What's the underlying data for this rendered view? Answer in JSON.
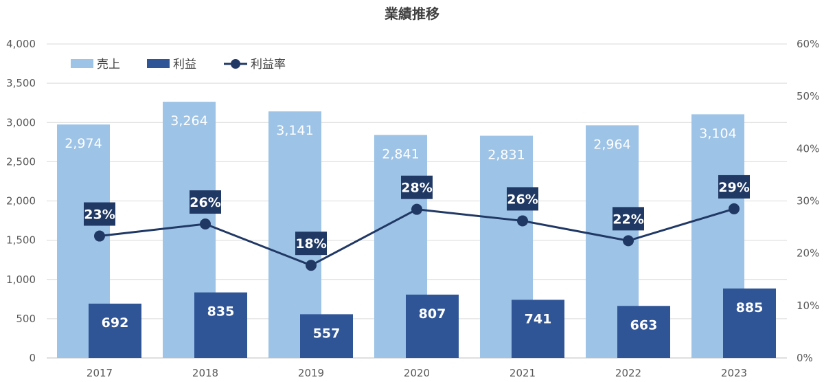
{
  "chart_data": {
    "type": "bar",
    "title": "業績推移",
    "categories": [
      "2017",
      "2018",
      "2019",
      "2020",
      "2021",
      "2022",
      "2023"
    ],
    "series": [
      {
        "name": "売上",
        "type": "bar",
        "axis": "left",
        "color": "#9DC3E6",
        "values": [
          2974,
          3264,
          3141,
          2841,
          2831,
          2964,
          3104
        ],
        "labels": [
          "2,974",
          "3,264",
          "3,141",
          "2,841",
          "2,831",
          "2,964",
          "3,104"
        ]
      },
      {
        "name": "利益",
        "type": "bar",
        "axis": "left",
        "color": "#2F5597",
        "values": [
          692,
          835,
          557,
          807,
          741,
          663,
          885
        ],
        "labels": [
          "692",
          "835",
          "557",
          "807",
          "741",
          "663",
          "885"
        ]
      },
      {
        "name": "利益率",
        "type": "line",
        "axis": "right",
        "color": "#203864",
        "values": [
          23.3,
          25.6,
          17.7,
          28.4,
          26.2,
          22.4,
          28.5
        ],
        "labels": [
          "23%",
          "26%",
          "18%",
          "28%",
          "26%",
          "22%",
          "29%"
        ]
      }
    ],
    "y_left": {
      "min": 0,
      "max": 4000,
      "ticks": [
        0,
        500,
        1000,
        1500,
        2000,
        2500,
        3000,
        3500,
        4000
      ],
      "tick_labels": [
        "0",
        "500",
        "1,000",
        "1,500",
        "2,000",
        "2,500",
        "3,000",
        "3,500",
        "4,000"
      ]
    },
    "y_right": {
      "min": 0,
      "max": 60,
      "ticks": [
        0,
        10,
        20,
        30,
        40,
        50,
        60
      ],
      "tick_labels": [
        "0%",
        "10%",
        "20%",
        "30%",
        "40%",
        "50%",
        "60%"
      ]
    },
    "grid": true,
    "legend_position": "top-left",
    "legend": [
      "売上",
      "利益",
      "利益率"
    ]
  }
}
